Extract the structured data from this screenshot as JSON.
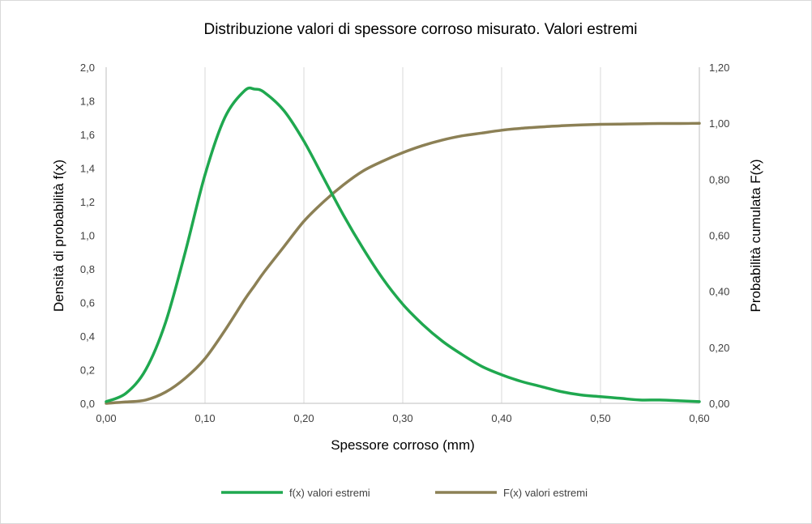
{
  "chart_data": {
    "type": "line",
    "title": "Distribuzione valori di spessore corroso misurato. Valori estremi",
    "xlabel": "Spessore corroso (mm)",
    "ylabel": "Densità di probabilità f(x)",
    "y2label": "Probabilità cumulata F(x)",
    "xlim": [
      0,
      0.6
    ],
    "ylim": [
      0,
      2.0
    ],
    "y2lim": [
      0,
      1.2
    ],
    "x_ticks": [
      "0,00",
      "0,10",
      "0,20",
      "0,30",
      "0,40",
      "0,50",
      "0,60"
    ],
    "y_ticks": [
      "0,0",
      "0,2",
      "0,4",
      "0,6",
      "0,8",
      "1,0",
      "1,2",
      "1,4",
      "1,6",
      "1,8",
      "2,0"
    ],
    "y2_ticks": [
      "0,00",
      "0,20",
      "0,40",
      "0,60",
      "0,80",
      "1,00",
      "1,20"
    ],
    "grid": "vertical",
    "legend_position": "bottom",
    "x": [
      0.0,
      0.02,
      0.04,
      0.06,
      0.08,
      0.1,
      0.12,
      0.14,
      0.15,
      0.16,
      0.18,
      0.2,
      0.22,
      0.24,
      0.26,
      0.28,
      0.3,
      0.32,
      0.34,
      0.36,
      0.38,
      0.4,
      0.42,
      0.44,
      0.46,
      0.48,
      0.5,
      0.52,
      0.54,
      0.56,
      0.58,
      0.6
    ],
    "series": [
      {
        "name": "f(x) valori estremi",
        "axis": "left",
        "color": "#1fa84f",
        "values": [
          0.01,
          0.06,
          0.2,
          0.48,
          0.9,
          1.36,
          1.7,
          1.86,
          1.87,
          1.85,
          1.74,
          1.56,
          1.34,
          1.12,
          0.92,
          0.74,
          0.59,
          0.47,
          0.37,
          0.29,
          0.22,
          0.17,
          0.13,
          0.1,
          0.07,
          0.05,
          0.04,
          0.03,
          0.02,
          0.02,
          0.015,
          0.01
        ]
      },
      {
        "name": "F(x) valori estremi",
        "axis": "right",
        "color": "#8c8055",
        "values": [
          0.0,
          0.005,
          0.012,
          0.04,
          0.09,
          0.16,
          0.26,
          0.37,
          0.42,
          0.47,
          0.56,
          0.65,
          0.72,
          0.78,
          0.83,
          0.865,
          0.895,
          0.92,
          0.94,
          0.955,
          0.965,
          0.975,
          0.982,
          0.987,
          0.991,
          0.994,
          0.996,
          0.997,
          0.998,
          0.999,
          0.999,
          1.0
        ]
      }
    ]
  }
}
